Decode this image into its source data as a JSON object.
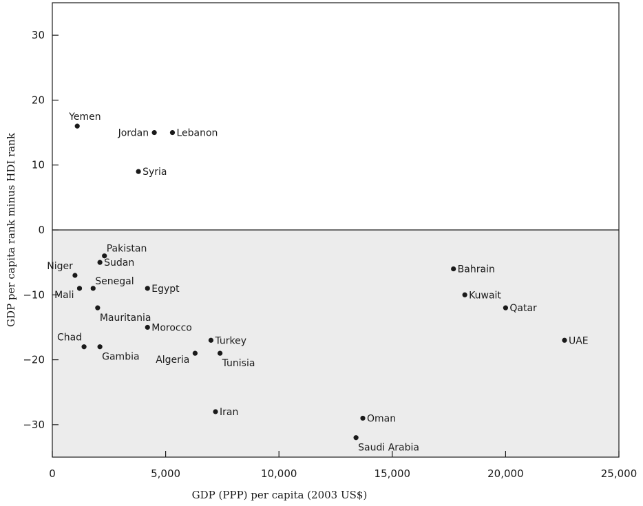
{
  "chart_data": {
    "type": "scatter",
    "xlabel": "GDP (PPP) per capita (2003 US$)",
    "ylabel": "GDP per capita rank minus HDI rank",
    "xlim": [
      0,
      25000
    ],
    "ylim": [
      -35,
      35
    ],
    "x_ticks": [
      0,
      5000,
      10000,
      15000,
      20000,
      25000
    ],
    "x_tick_labels": [
      "0",
      "5,000",
      "10,000",
      "15,000",
      "20,000",
      "25,000"
    ],
    "y_ticks": [
      -30,
      -20,
      -10,
      0,
      10,
      20,
      30
    ],
    "y_tick_labels": [
      "−30",
      "−20",
      "−10",
      "0",
      "10",
      "20",
      "30"
    ],
    "grid": false,
    "shading": {
      "below_zero": "#ececec",
      "above_zero": "#ffffff"
    },
    "point_color": "#1a1a1a",
    "points": [
      {
        "label": "Yemen",
        "x": 1100,
        "y": 16,
        "anchor": "top"
      },
      {
        "label": "Jordan",
        "x": 4500,
        "y": 15,
        "anchor": "left"
      },
      {
        "label": "Lebanon",
        "x": 5300,
        "y": 15,
        "anchor": "right"
      },
      {
        "label": "Syria",
        "x": 3800,
        "y": 9,
        "anchor": "right"
      },
      {
        "label": "Pakistan",
        "x": 2300,
        "y": -4,
        "anchor": "top-right"
      },
      {
        "label": "Sudan",
        "x": 2100,
        "y": -5,
        "anchor": "right"
      },
      {
        "label": "Niger",
        "x": 1000,
        "y": -7,
        "anchor": "top-left"
      },
      {
        "label": "Senegal",
        "x": 1800,
        "y": -9,
        "anchor": "top-right"
      },
      {
        "label": "Mali",
        "x": 1200,
        "y": -9,
        "anchor": "bottom-left"
      },
      {
        "label": "Egypt",
        "x": 4200,
        "y": -9,
        "anchor": "right"
      },
      {
        "label": "Mauritania",
        "x": 2000,
        "y": -12,
        "anchor": "bottom-right"
      },
      {
        "label": "Morocco",
        "x": 4200,
        "y": -15,
        "anchor": "right"
      },
      {
        "label": "Chad",
        "x": 1400,
        "y": -18,
        "anchor": "top-left"
      },
      {
        "label": "Gambia",
        "x": 2100,
        "y": -18,
        "anchor": "bottom-right"
      },
      {
        "label": "Turkey",
        "x": 7000,
        "y": -17,
        "anchor": "right"
      },
      {
        "label": "Algeria",
        "x": 6300,
        "y": -19,
        "anchor": "bottom-left"
      },
      {
        "label": "Tunisia",
        "x": 7400,
        "y": -19,
        "anchor": "bottom-right"
      },
      {
        "label": "Iran",
        "x": 7200,
        "y": -28,
        "anchor": "right"
      },
      {
        "label": "Bahrain",
        "x": 17700,
        "y": -6,
        "anchor": "right"
      },
      {
        "label": "Kuwait",
        "x": 18200,
        "y": -10,
        "anchor": "right"
      },
      {
        "label": "Qatar",
        "x": 20000,
        "y": -12,
        "anchor": "right"
      },
      {
        "label": "UAE",
        "x": 22600,
        "y": -17,
        "anchor": "right"
      },
      {
        "label": "Oman",
        "x": 13700,
        "y": -29,
        "anchor": "right"
      },
      {
        "label": "Saudi Arabia",
        "x": 13400,
        "y": -32,
        "anchor": "bottom-right"
      }
    ]
  }
}
